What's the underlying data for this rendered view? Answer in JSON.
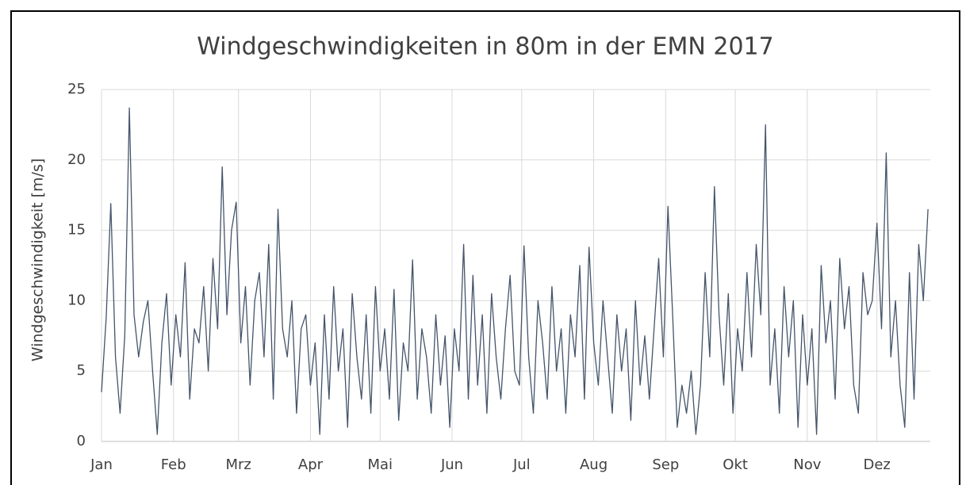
{
  "chart_data": {
    "type": "line",
    "title": "Windgeschwindigkeiten in 80m in der EMN 2017",
    "y_label": "Windgeschwindigkeit [m/s]",
    "color": "#44546a",
    "grid": true,
    "xlim": [
      0,
      357
    ],
    "xticks": [
      {
        "value": 0,
        "label": "Jan"
      },
      {
        "value": 31,
        "label": "Feb"
      },
      {
        "value": 59,
        "label": "Mrz"
      },
      {
        "value": 90,
        "label": "Apr"
      },
      {
        "value": 120,
        "label": "Mai"
      },
      {
        "value": 151,
        "label": "Jun"
      },
      {
        "value": 181,
        "label": "Jul"
      },
      {
        "value": 212,
        "label": "Aug"
      },
      {
        "value": 243,
        "label": "Sep"
      },
      {
        "value": 273,
        "label": "Okt"
      },
      {
        "value": 304,
        "label": "Nov"
      },
      {
        "value": 334,
        "label": "Dez"
      }
    ],
    "ylim": [
      0,
      25
    ],
    "yticks": [
      0,
      5,
      10,
      15,
      20,
      25
    ],
    "x": [
      0,
      2,
      4,
      6,
      8,
      10,
      12,
      14,
      16,
      18,
      20,
      22,
      24,
      26,
      28,
      30,
      32,
      34,
      36,
      38,
      40,
      42,
      44,
      46,
      48,
      50,
      52,
      54,
      56,
      58,
      60,
      62,
      64,
      66,
      68,
      70,
      72,
      74,
      76,
      78,
      80,
      82,
      84,
      86,
      88,
      90,
      92,
      94,
      96,
      98,
      100,
      102,
      104,
      106,
      108,
      110,
      112,
      114,
      116,
      118,
      120,
      122,
      124,
      126,
      128,
      130,
      132,
      134,
      136,
      138,
      140,
      142,
      144,
      146,
      148,
      150,
      152,
      154,
      156,
      158,
      160,
      162,
      164,
      166,
      168,
      170,
      172,
      174,
      176,
      178,
      180,
      182,
      184,
      186,
      188,
      190,
      192,
      194,
      196,
      198,
      200,
      202,
      204,
      206,
      208,
      210,
      212,
      214,
      216,
      218,
      220,
      222,
      224,
      226,
      228,
      230,
      232,
      234,
      236,
      238,
      240,
      242,
      244,
      246,
      248,
      250,
      252,
      254,
      256,
      258,
      260,
      262,
      264,
      266,
      268,
      270,
      272,
      274,
      276,
      278,
      280,
      282,
      284,
      286,
      288,
      290,
      292,
      294,
      296,
      298,
      300,
      302,
      304,
      306,
      308,
      310,
      312,
      314,
      316,
      318,
      320,
      322,
      324,
      326,
      328,
      330,
      332,
      334,
      336,
      338,
      340,
      342,
      344,
      346,
      348,
      350,
      352,
      354,
      356
    ],
    "values": [
      3.5,
      8.8,
      16.9,
      6,
      2,
      7.5,
      23.7,
      9,
      6,
      8.5,
      10,
      5,
      0.5,
      7,
      10.5,
      4,
      9,
      6,
      12.7,
      3,
      8,
      7,
      11,
      5,
      13,
      8,
      19.5,
      9,
      15,
      17,
      7,
      11,
      4,
      10,
      12,
      6,
      14,
      3,
      16.5,
      8,
      6,
      10,
      2,
      8,
      9,
      4,
      7,
      0.5,
      9,
      3,
      11,
      5,
      8,
      1,
      10.5,
      6,
      3,
      9,
      2,
      11,
      5,
      8,
      3,
      10.8,
      1.5,
      7,
      5,
      12.9,
      3,
      8,
      6,
      2,
      9,
      4,
      7.5,
      1,
      8,
      5,
      14,
      3,
      11.8,
      4,
      9,
      2,
      10.5,
      6,
      3,
      8,
      11.8,
      5,
      4,
      13.9,
      6,
      2,
      10,
      7,
      3,
      11,
      5,
      8,
      2,
      9,
      6,
      12.5,
      3,
      13.8,
      7,
      4,
      10,
      6,
      2,
      9,
      5,
      8,
      1.5,
      10,
      4,
      7.5,
      3,
      8,
      13,
      6,
      16.7,
      9,
      1,
      4,
      2,
      5,
      0.5,
      4,
      12,
      6,
      18.1,
      9,
      4,
      10.5,
      2,
      8,
      5,
      12,
      6,
      14,
      9,
      22.5,
      4,
      8,
      2,
      11,
      6,
      10,
      1,
      9,
      4,
      8,
      0.5,
      12.5,
      7,
      10,
      3,
      13,
      8,
      11,
      4,
      2,
      12,
      9,
      10,
      15.5,
      8,
      20.5,
      6,
      10,
      4,
      1,
      12,
      3,
      14,
      10,
      16.5
    ]
  }
}
